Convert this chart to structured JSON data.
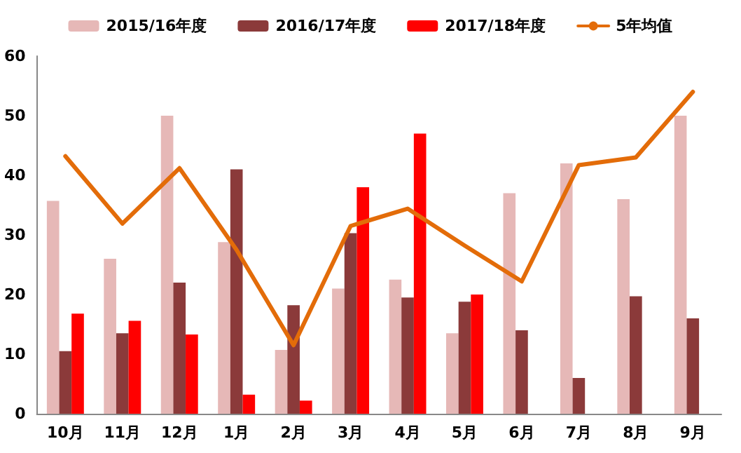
{
  "chart_data": {
    "type": "bar",
    "categories": [
      "10月",
      "11月",
      "12月",
      "1月",
      "2月",
      "3月",
      "4月",
      "5月",
      "6月",
      "7月",
      "8月",
      "9月"
    ],
    "series": [
      {
        "name": "2015/16年度",
        "color": "#e6b8b7",
        "values": [
          35.7,
          26,
          50,
          28.8,
          10.7,
          21,
          22.5,
          13.5,
          37,
          42,
          36,
          50
        ]
      },
      {
        "name": "2016/17年度",
        "color": "#8b3a3a",
        "values": [
          10.5,
          13.5,
          22,
          41,
          18.2,
          30.3,
          19.5,
          18.8,
          14,
          6,
          19.7,
          16
        ]
      },
      {
        "name": "2017/18年度",
        "color": "#ff0000",
        "values": [
          16.8,
          15.6,
          13.3,
          3.2,
          2.2,
          38,
          47,
          20,
          null,
          null,
          null,
          null
        ]
      },
      {
        "name": "5年均值",
        "type": "line",
        "color": "#e36c09",
        "values": [
          43.2,
          31.9,
          41.2,
          27.5,
          11.5,
          31.5,
          34.4,
          28.2,
          22.2,
          41.7,
          43,
          54
        ]
      }
    ],
    "ylim": [
      0,
      60
    ],
    "yticks": [
      0,
      10,
      20,
      30,
      40,
      50,
      60
    ],
    "grid": false,
    "legend": "top",
    "marker": "none"
  }
}
